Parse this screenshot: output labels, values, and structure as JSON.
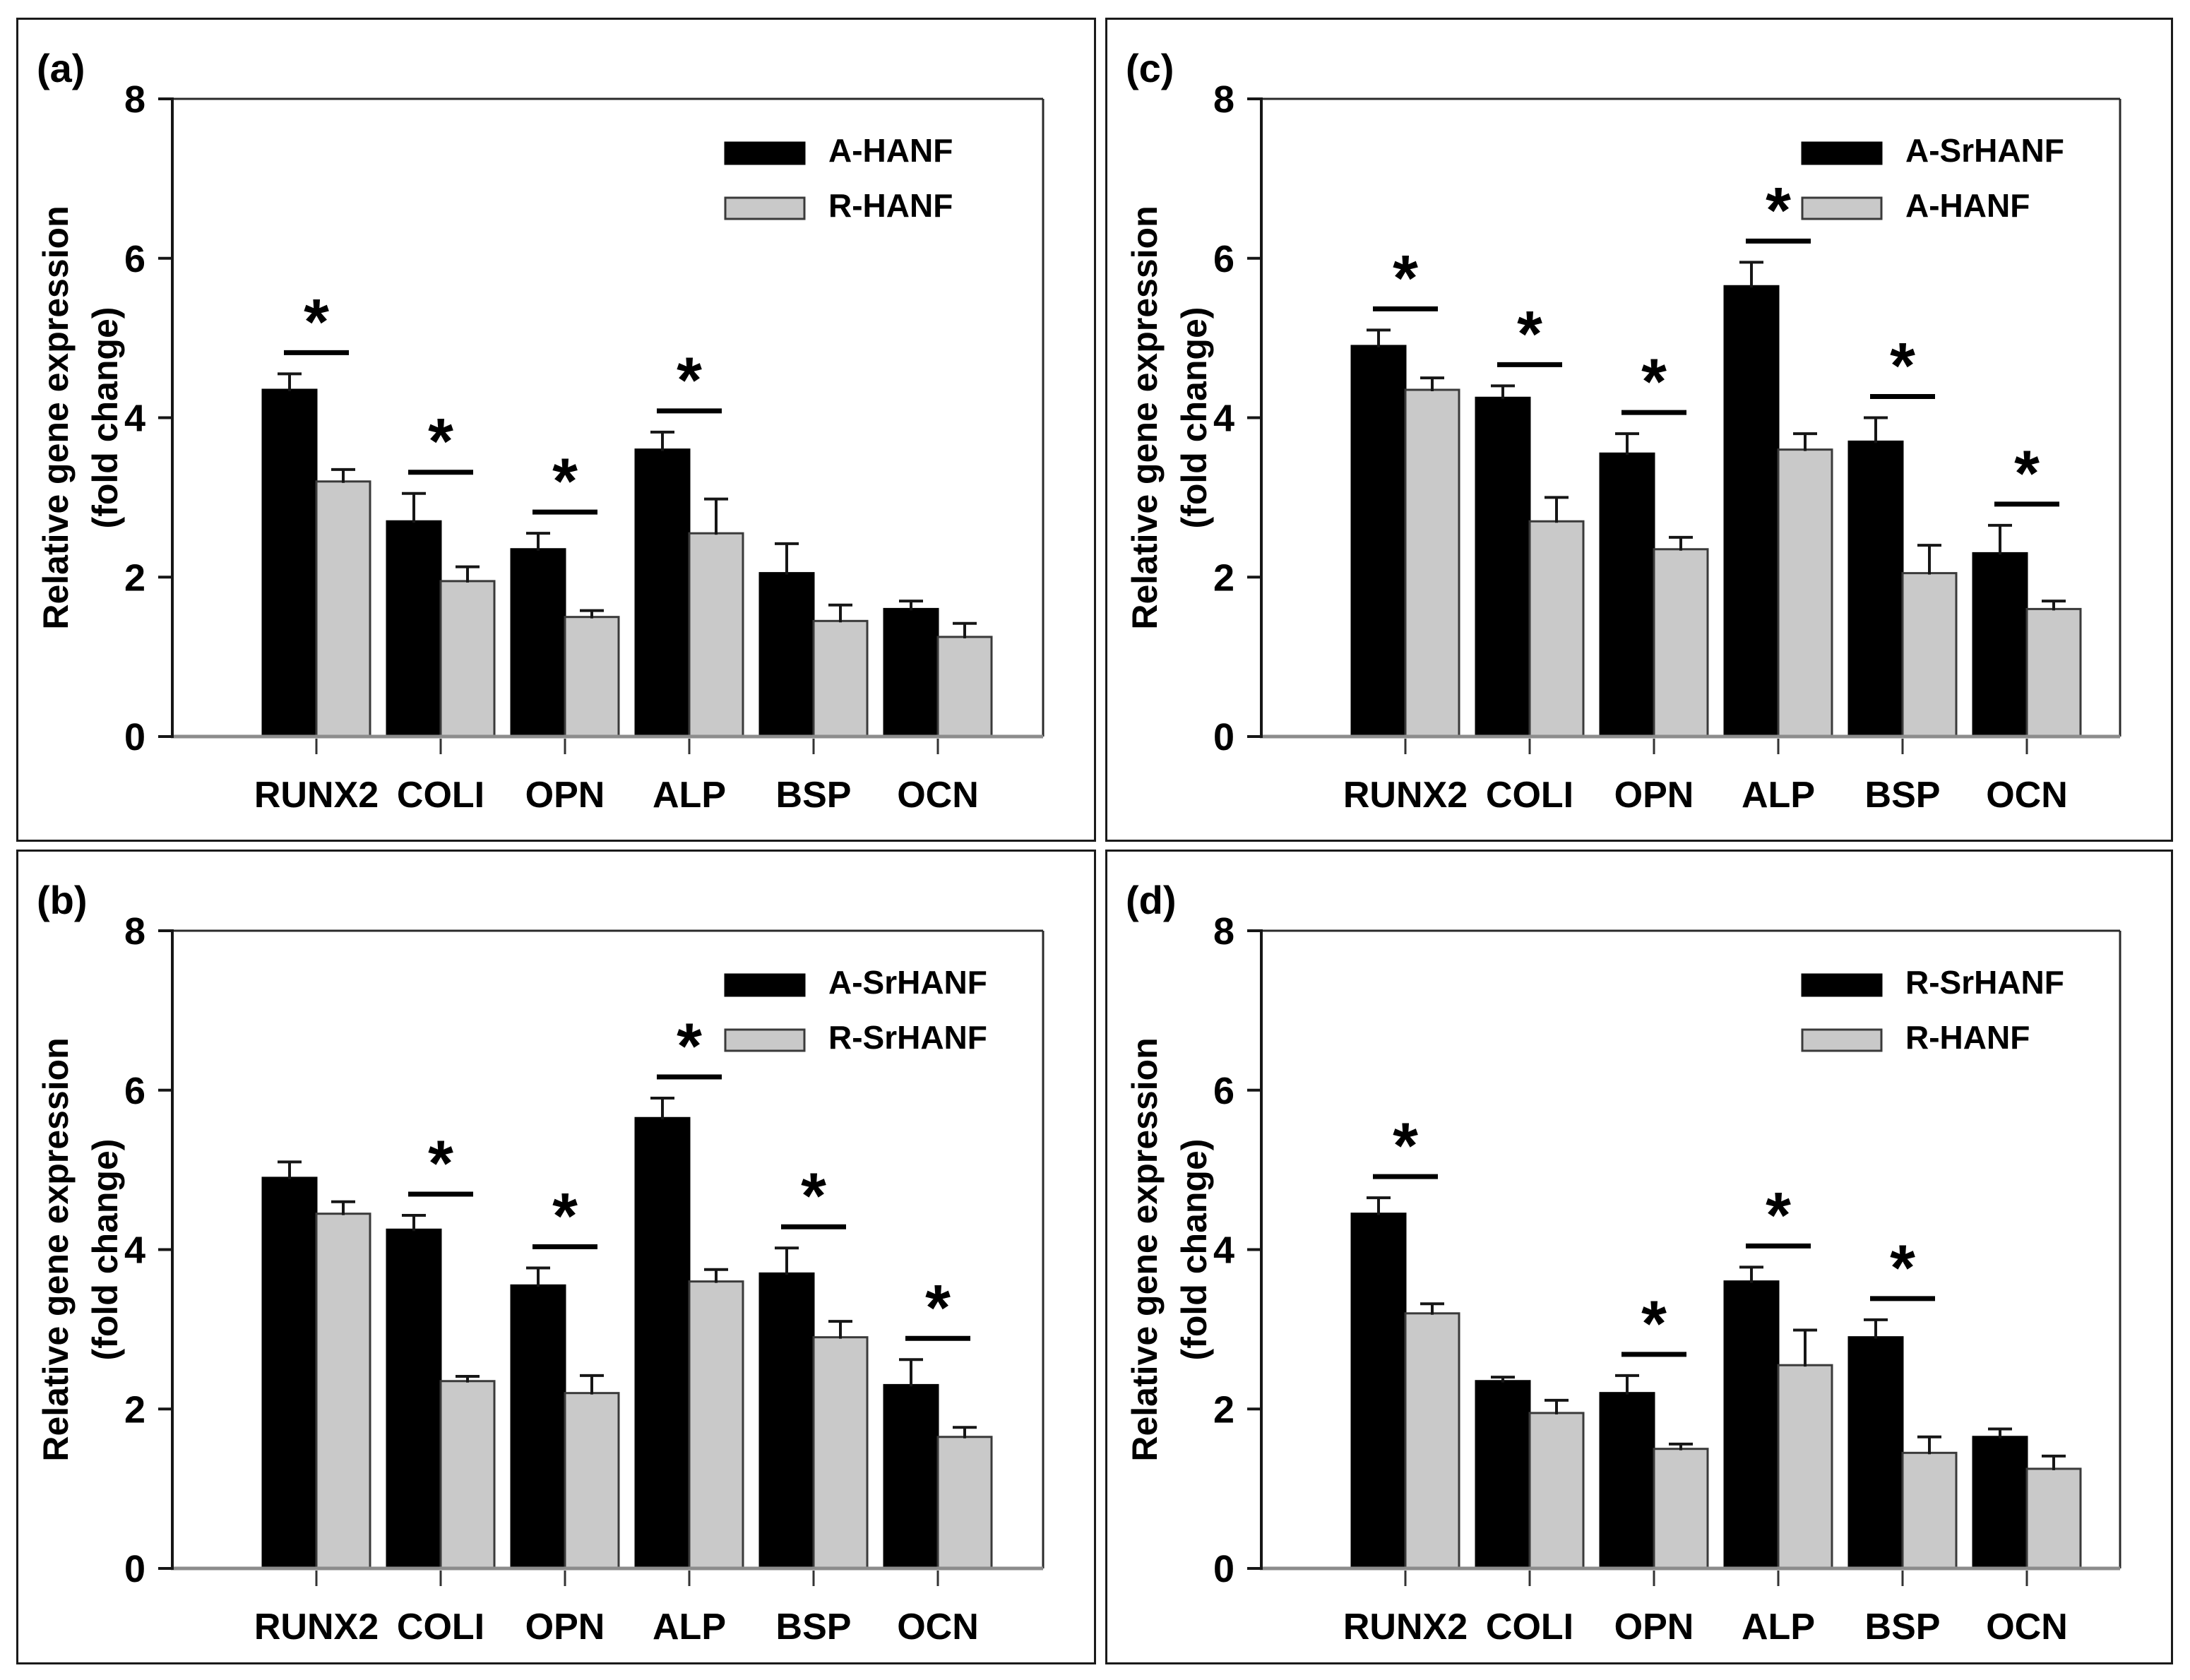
{
  "figure": {
    "background": "#ffffff",
    "sig_symbol": "*",
    "colors": {
      "bar_black": "#000000",
      "bar_gray": "#c9c9c9",
      "bar_gray_border": "#3a3a3a",
      "axis": "#161616",
      "baseline": "#8c8c8c",
      "frame": "#2a2a2a",
      "panel_border": "#1a1a1a",
      "text": "#000000"
    }
  },
  "chart_data": [
    {
      "id": "a",
      "panel_label": "(a)",
      "type": "bar",
      "title": "",
      "categories": [
        "RUNX2",
        "COLI",
        "OPN",
        "ALP",
        "BSP",
        "OCN"
      ],
      "ylabel_lines": [
        "Relative gene expression",
        "(fold change)"
      ],
      "xlabel": "",
      "ylim": [
        0,
        8
      ],
      "yticks": [
        0,
        2,
        4,
        6,
        8
      ],
      "grid": false,
      "legend_position": "top-right-inside",
      "series": [
        {
          "name": "A-HANF",
          "color": "black",
          "values": [
            4.35,
            2.7,
            2.35,
            3.6,
            2.05,
            1.6
          ],
          "errors": [
            0.2,
            0.35,
            0.2,
            0.22,
            0.37,
            0.1
          ]
        },
        {
          "name": "R-HANF",
          "color": "gray",
          "values": [
            3.2,
            1.95,
            1.5,
            2.55,
            1.45,
            1.25
          ],
          "errors": [
            0.15,
            0.18,
            0.08,
            0.43,
            0.2,
            0.17
          ]
        }
      ],
      "significance": [
        true,
        true,
        true,
        true,
        false,
        false
      ]
    },
    {
      "id": "c",
      "panel_label": "(c)",
      "type": "bar",
      "title": "",
      "categories": [
        "RUNX2",
        "COLI",
        "OPN",
        "ALP",
        "BSP",
        "OCN"
      ],
      "ylabel_lines": [
        "Relative gene expression",
        "(fold change)"
      ],
      "xlabel": "",
      "ylim": [
        0,
        8
      ],
      "yticks": [
        0,
        2,
        4,
        6,
        8
      ],
      "grid": false,
      "legend_position": "top-right-inside",
      "series": [
        {
          "name": "A-SrHANF",
          "color": "black",
          "values": [
            4.9,
            4.25,
            3.55,
            5.65,
            3.7,
            2.3
          ],
          "errors": [
            0.2,
            0.15,
            0.25,
            0.3,
            0.3,
            0.35
          ]
        },
        {
          "name": "A-HANF",
          "color": "gray",
          "values": [
            4.35,
            2.7,
            2.35,
            3.6,
            2.05,
            1.6
          ],
          "errors": [
            0.15,
            0.3,
            0.15,
            0.2,
            0.35,
            0.1
          ]
        }
      ],
      "significance": [
        true,
        true,
        true,
        true,
        true,
        true
      ]
    },
    {
      "id": "b",
      "panel_label": "(b)",
      "type": "bar",
      "title": "",
      "categories": [
        "RUNX2",
        "COLI",
        "OPN",
        "ALP",
        "BSP",
        "OCN"
      ],
      "ylabel_lines": [
        "Relative gene expression",
        "(fold change)"
      ],
      "xlabel": "",
      "ylim": [
        0,
        8
      ],
      "yticks": [
        0,
        2,
        4,
        6,
        8
      ],
      "grid": false,
      "legend_position": "top-right-inside",
      "series": [
        {
          "name": "A-SrHANF",
          "color": "black",
          "values": [
            4.9,
            4.25,
            3.55,
            5.65,
            3.7,
            2.3
          ],
          "errors": [
            0.2,
            0.18,
            0.22,
            0.25,
            0.32,
            0.32
          ]
        },
        {
          "name": "R-SrHANF",
          "color": "gray",
          "values": [
            4.45,
            2.35,
            2.2,
            3.6,
            2.9,
            1.65
          ],
          "errors": [
            0.15,
            0.06,
            0.22,
            0.15,
            0.2,
            0.12
          ]
        }
      ],
      "significance": [
        false,
        true,
        true,
        true,
        true,
        true
      ]
    },
    {
      "id": "d",
      "panel_label": "(d)",
      "type": "bar",
      "title": "",
      "categories": [
        "RUNX2",
        "COLI",
        "OPN",
        "ALP",
        "BSP",
        "OCN"
      ],
      "ylabel_lines": [
        "Relative gene expression",
        "(fold change)"
      ],
      "xlabel": "",
      "ylim": [
        0,
        8
      ],
      "yticks": [
        0,
        2,
        4,
        6,
        8
      ],
      "grid": false,
      "legend_position": "top-right-inside",
      "series": [
        {
          "name": "R-SrHANF",
          "color": "black",
          "values": [
            4.45,
            2.35,
            2.2,
            3.6,
            2.9,
            1.65
          ],
          "errors": [
            0.2,
            0.05,
            0.22,
            0.18,
            0.22,
            0.1
          ]
        },
        {
          "name": "R-HANF",
          "color": "gray",
          "values": [
            3.2,
            1.95,
            1.5,
            2.55,
            1.45,
            1.25
          ],
          "errors": [
            0.12,
            0.16,
            0.06,
            0.44,
            0.2,
            0.16
          ]
        }
      ],
      "significance": [
        true,
        false,
        true,
        true,
        true,
        false
      ]
    }
  ]
}
